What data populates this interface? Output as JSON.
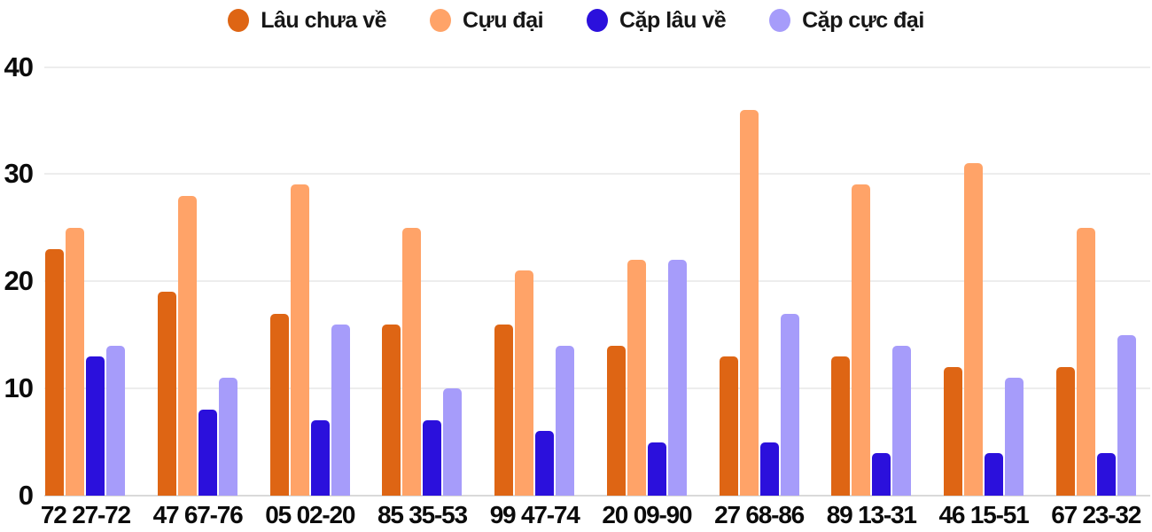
{
  "chart_data": {
    "type": "bar",
    "title": "",
    "xlabel": "",
    "ylabel": "",
    "categories": [
      "72 27-72",
      "47 67-76",
      "05 02-20",
      "85 35-53",
      "99 47-74",
      "20 09-90",
      "27 68-86",
      "89 13-31",
      "46 15-51",
      "67 23-32"
    ],
    "series": [
      {
        "name": "Lâu chưa về",
        "color": "#DE6514",
        "values": [
          23,
          19,
          17,
          16,
          16,
          14,
          13,
          13,
          12,
          12
        ]
      },
      {
        "name": "Cựu đại",
        "color": "#FFA368",
        "values": [
          25,
          28,
          29,
          25,
          21,
          22,
          36,
          29,
          31,
          25
        ]
      },
      {
        "name": "Cặp lâu về",
        "color": "#2B10DC",
        "values": [
          13,
          8,
          7,
          7,
          6,
          5,
          5,
          4,
          4,
          4
        ]
      },
      {
        "name": "Cặp cực đại",
        "color": "#A69CFA",
        "values": [
          14,
          11,
          16,
          10,
          14,
          22,
          17,
          14,
          11,
          15
        ]
      }
    ],
    "yticks": [
      0,
      10,
      20,
      30,
      40
    ],
    "ylim": [
      0,
      40
    ],
    "grid": true,
    "legend_position": "top",
    "colors": {
      "gridline": "#ededed",
      "baseline": "#d9d9d9",
      "text": "#0b0b0b",
      "background": "#ffffff"
    }
  }
}
